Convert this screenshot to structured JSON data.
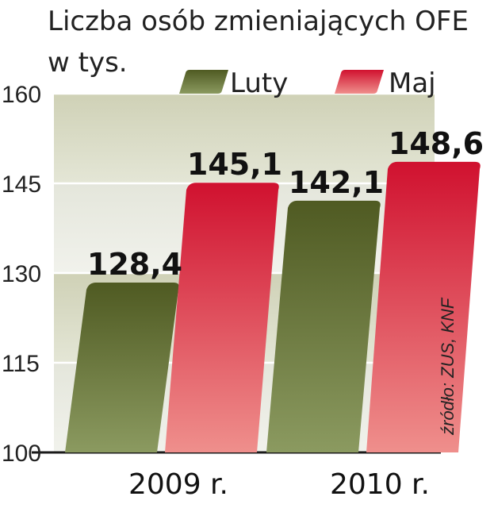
{
  "chart_data": {
    "type": "bar",
    "title": "Liczba osób zmieniających OFE",
    "subtitle": "w tys.",
    "categories": [
      "2009 r.",
      "2010 r."
    ],
    "series": [
      {
        "name": "Luty",
        "values": [
          128.4,
          142.1
        ],
        "value_labels": [
          "128,4",
          "142,1"
        ],
        "color": "#5e6a30"
      },
      {
        "name": "Maj",
        "values": [
          145.1,
          148.6
        ],
        "value_labels": [
          "145,1",
          "148,6"
        ],
        "color": "#d42640"
      }
    ],
    "ylim": [
      100,
      160
    ],
    "yticks": [
      100,
      115,
      130,
      145,
      160
    ],
    "ytick_labels": [
      "100",
      "115",
      "130",
      "145",
      "160"
    ],
    "grid": true,
    "legend": "top",
    "source": "źródło: ZUS, KNF",
    "colors": {
      "band_dark": "#d6d8c2",
      "band_light": "#eceee4",
      "grid": "#ffffff"
    }
  }
}
